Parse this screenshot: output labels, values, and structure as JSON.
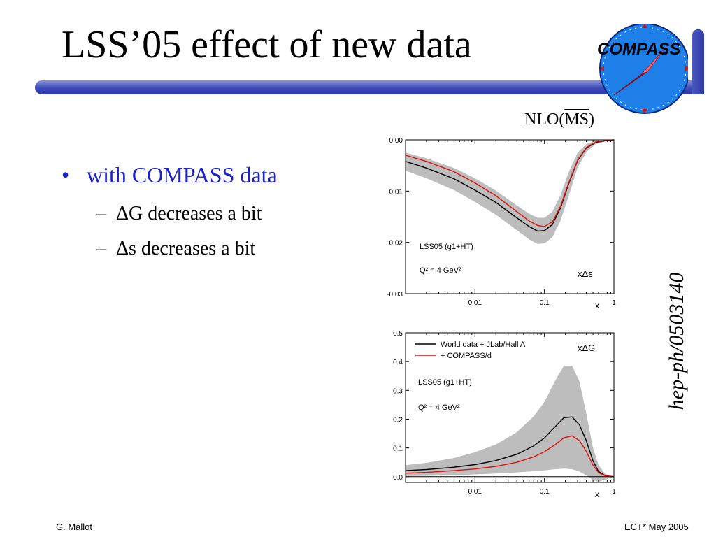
{
  "slide": {
    "title": "LSS’05 effect of new data",
    "bullet": "with COMPASS data",
    "sub1": "ΔG decreases a bit",
    "sub2": "Δs  decreases a bit",
    "nlo_prefix": "NLO(",
    "nlo_ms": "MS",
    "nlo_suffix": ")",
    "side_label": "hep-ph/0503140",
    "footer_left": "G. Mallot",
    "footer_right": "ECT* May 2005",
    "logo_text": "COMPASS",
    "colors": {
      "accent": "#3d4bb8",
      "bullet_blue": "#1a22cc",
      "logo_blue": "#1f7fe8",
      "series_red": "#e01010"
    }
  },
  "chart_data": [
    {
      "type": "line",
      "x_scale": "log",
      "xlim": [
        0.001,
        1
      ],
      "ylim": [
        -0.03,
        0.0
      ],
      "xlabel": "x",
      "yticks": [
        "0.00",
        "-0.01",
        "-0.02",
        "-0.03"
      ],
      "yticks_values": [
        0.0,
        -0.01,
        -0.02,
        -0.03
      ],
      "xticks": [
        "0.01",
        "0.1",
        "1"
      ],
      "xticks_values": [
        0.01,
        0.1,
        1
      ],
      "annotations": [
        "LSS05 (g1+HT)",
        "Q² = 4 GeV²",
        "xΔs"
      ],
      "x": [
        0.001,
        0.002,
        0.005,
        0.01,
        0.02,
        0.04,
        0.06,
        0.08,
        0.1,
        0.13,
        0.17,
        0.22,
        0.3,
        0.4,
        0.55,
        0.8,
        1.0
      ],
      "band": {
        "upper": [
          -0.0025,
          -0.0036,
          -0.0055,
          -0.0075,
          -0.0099,
          -0.0128,
          -0.0144,
          -0.0152,
          -0.0152,
          -0.014,
          -0.0108,
          -0.0065,
          -0.0025,
          -0.0008,
          -0.0002,
          0.0,
          0.0
        ],
        "lower": [
          -0.006,
          -0.0075,
          -0.0098,
          -0.0121,
          -0.0146,
          -0.0176,
          -0.0194,
          -0.0203,
          -0.0202,
          -0.019,
          -0.0158,
          -0.0112,
          -0.0054,
          -0.0024,
          -0.0008,
          -0.0002,
          0.0
        ]
      },
      "series": [
        {
          "color": "#000000",
          "values": [
            -0.0042,
            -0.0055,
            -0.0076,
            -0.0098,
            -0.0122,
            -0.0152,
            -0.0169,
            -0.0178,
            -0.0177,
            -0.0165,
            -0.0133,
            -0.0088,
            -0.004,
            -0.0016,
            -0.0005,
            -0.0001,
            0.0
          ]
        },
        {
          "color": "#e01010",
          "values": [
            -0.003,
            -0.0042,
            -0.0062,
            -0.0084,
            -0.0109,
            -0.014,
            -0.0158,
            -0.0167,
            -0.0169,
            -0.016,
            -0.013,
            -0.0086,
            -0.0039,
            -0.0015,
            -0.0004,
            -0.0001,
            0.0
          ]
        }
      ]
    },
    {
      "type": "line",
      "x_scale": "log",
      "xlim": [
        0.001,
        1
      ],
      "ylim": [
        -0.02,
        0.5
      ],
      "xlabel": "x",
      "yticks": [
        "0.5",
        "0.4",
        "0.3",
        "0.2",
        "0.1",
        "0.0"
      ],
      "yticks_values": [
        0.5,
        0.4,
        0.3,
        0.2,
        0.1,
        0.0
      ],
      "xticks": [
        "0.01",
        "0.1",
        "1"
      ],
      "xticks_values": [
        0.01,
        0.1,
        1
      ],
      "annotations": [
        "LSS05 (g1+HT)",
        "Q² = 4 GeV²",
        "xΔG"
      ],
      "legend": [
        "World data + JLab/Hall A",
        "+ COMPASS/d"
      ],
      "x": [
        0.001,
        0.002,
        0.005,
        0.01,
        0.02,
        0.04,
        0.07,
        0.1,
        0.14,
        0.19,
        0.25,
        0.32,
        0.4,
        0.5,
        0.6,
        0.75,
        1.0
      ],
      "band": {
        "upper": [
          0.04,
          0.048,
          0.065,
          0.085,
          0.112,
          0.155,
          0.21,
          0.26,
          0.33,
          0.385,
          0.385,
          0.33,
          0.22,
          0.1,
          0.04,
          0.01,
          0.0
        ],
        "lower": [
          0.002,
          0.003,
          0.005,
          0.008,
          0.011,
          0.015,
          0.019,
          0.022,
          0.026,
          0.028,
          0.026,
          0.018,
          0.005,
          -0.012,
          -0.018,
          -0.01,
          0.0
        ]
      },
      "series": [
        {
          "name": "World data + JLab/Hall A",
          "color": "#000000",
          "values": [
            0.021,
            0.025,
            0.033,
            0.042,
            0.056,
            0.078,
            0.107,
            0.135,
            0.172,
            0.205,
            0.208,
            0.18,
            0.125,
            0.055,
            0.018,
            0.003,
            0.0
          ]
        },
        {
          "name": "+ COMPASS/d",
          "color": "#e01010",
          "values": [
            0.012,
            0.015,
            0.021,
            0.027,
            0.036,
            0.05,
            0.069,
            0.087,
            0.11,
            0.135,
            0.142,
            0.125,
            0.088,
            0.04,
            0.014,
            0.003,
            0.0
          ]
        }
      ]
    }
  ]
}
